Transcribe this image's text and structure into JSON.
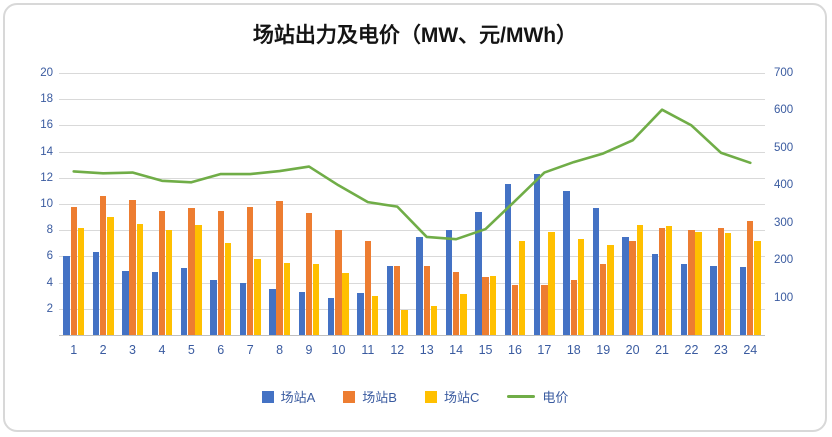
{
  "chart_data": {
    "type": "bar",
    "title": "场站出力及电价（MW、元/MWh）",
    "categories": [
      "1",
      "2",
      "3",
      "4",
      "5",
      "6",
      "7",
      "8",
      "9",
      "10",
      "11",
      "12",
      "13",
      "14",
      "15",
      "16",
      "17",
      "18",
      "19",
      "20",
      "21",
      "22",
      "23",
      "24"
    ],
    "series": [
      {
        "id": "station-a",
        "name": "场站A",
        "type": "bar",
        "axis": "left",
        "color": "#4472C4",
        "values": [
          6.0,
          6.3,
          4.9,
          4.8,
          5.1,
          4.2,
          4.0,
          3.5,
          3.3,
          2.8,
          3.2,
          5.3,
          7.5,
          8.0,
          9.4,
          11.5,
          12.3,
          11.0,
          9.7,
          7.5,
          6.2,
          5.4,
          5.3,
          5.2
        ]
      },
      {
        "id": "station-b",
        "name": "场站B",
        "type": "bar",
        "axis": "left",
        "color": "#ED7D31",
        "values": [
          9.8,
          10.6,
          10.3,
          9.5,
          9.7,
          9.5,
          9.8,
          10.2,
          9.3,
          8.0,
          7.2,
          5.3,
          5.3,
          4.8,
          4.4,
          3.8,
          3.8,
          4.2,
          5.4,
          7.2,
          8.2,
          8.0,
          8.2,
          8.7
        ]
      },
      {
        "id": "station-c",
        "name": "场站C",
        "type": "bar",
        "axis": "left",
        "color": "#FFC000",
        "values": [
          8.2,
          9.0,
          8.5,
          8.0,
          8.4,
          7.0,
          5.8,
          5.5,
          5.4,
          4.7,
          3.0,
          1.9,
          2.2,
          3.1,
          4.5,
          7.2,
          7.9,
          7.3,
          6.9,
          8.4,
          8.3,
          7.9,
          7.8,
          7.2
        ]
      },
      {
        "id": "price",
        "name": "电价",
        "type": "line",
        "axis": "right",
        "color": "#70AD47",
        "values": [
          437,
          432,
          434,
          412,
          408,
          430,
          430,
          438,
          450,
          400,
          355,
          343,
          262,
          256,
          283,
          358,
          434,
          462,
          485,
          520,
          602,
          560,
          487,
          460
        ]
      }
    ],
    "axes": {
      "left": {
        "min": 0,
        "max": 20,
        "ticks": [
          2,
          4,
          6,
          8,
          10,
          12,
          14,
          16,
          18,
          20
        ]
      },
      "right": {
        "min": 0,
        "max": 700,
        "ticks": [
          100,
          200,
          300,
          400,
          500,
          600,
          700
        ]
      }
    },
    "legend_position": "bottom",
    "grid": true,
    "text_color": "#3A5BA0",
    "grid_color": "#D9D9D9",
    "axis_line_color": "#BFBFBF"
  }
}
